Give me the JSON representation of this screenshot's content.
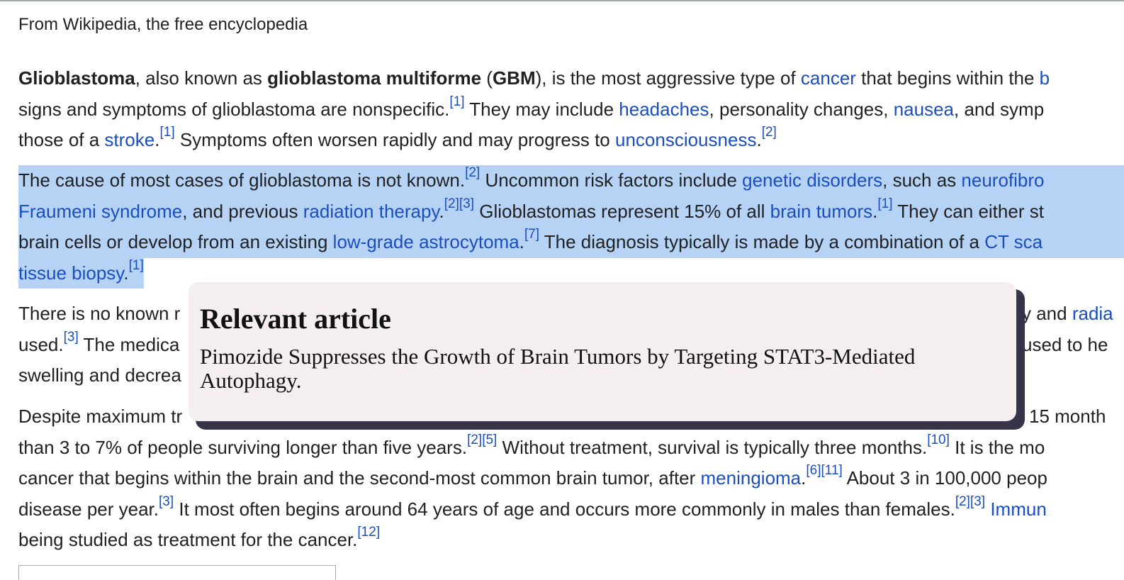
{
  "tagline": "From Wikipedia, the free encyclopedia",
  "p1": {
    "l1": {
      "t1": "Glioblastoma",
      "t2": ", also known as ",
      "t3": "glioblastoma multiforme",
      "t4": " (",
      "t5": "GBM",
      "t6": "), is the most aggressive type of ",
      "link_cancer": "cancer",
      "t7": " that begins within the ",
      "link_b": "b"
    },
    "l2": {
      "t1": "signs and symptoms of glioblastoma are nonspecific.",
      "ref1": "[1]",
      "t2": " They may include ",
      "link_headaches": "headaches",
      "t3": ", personality changes, ",
      "link_nausea": "nausea",
      "t4": ", and symp"
    },
    "l3": {
      "t1": "those of a ",
      "link_stroke": "stroke",
      "t2": ".",
      "ref1": "[1]",
      "t3": " Symptoms often worsen rapidly and may progress to ",
      "link_unconsciousness": "unconsciousness",
      "t4": ".",
      "ref2": "[2]"
    }
  },
  "p2": {
    "l1": {
      "t1": "The cause of most cases of glioblastoma is not known.",
      "ref1": "[2]",
      "t2": " Uncommon risk factors include ",
      "link_genetic": "genetic disorders",
      "t3": ", such as ",
      "link_neuro": "neurofibro"
    },
    "l2": {
      "link_fraumeni": "Fraumeni syndrome",
      "t1": ", and previous ",
      "link_radiation": "radiation therapy",
      "t2": ".",
      "ref1": "[2]",
      "ref2": "[3]",
      "t3": " Glioblastomas represent 15% of all ",
      "link_brain_tumors": "brain tumors",
      "t4": ".",
      "ref3": "[1]",
      "t5": " They can either st"
    },
    "l3": {
      "t1": "brain cells or develop from an existing ",
      "link_lowgrade": "low-grade astrocytoma",
      "t2": ".",
      "ref1": "[7]",
      "t3": " The diagnosis typically is made by a combination of a ",
      "link_ct": "CT sca"
    },
    "l4": {
      "link_biopsy": "tissue biopsy",
      "t1": ".",
      "ref1": "[1]"
    }
  },
  "p3": {
    "l1": {
      "t1": "There is no known r",
      "t2": "y and ",
      "link_radia": "radia"
    },
    "l2": {
      "t1": "used.",
      "ref1": "[3]",
      "t2": " The medica",
      "t3": "used to he"
    },
    "l3": {
      "t1": "swelling and decrea"
    }
  },
  "p4": {
    "l1": {
      "t1": "Despite maximum tr",
      "t2": "15 month"
    },
    "l2": {
      "t1": "than 3 to 7% of people surviving longer than five years.",
      "ref1": "[2]",
      "ref2": "[5]",
      "t2": " Without treatment, survival is typically three months.",
      "ref3": "[10]",
      "t3": " It is the mo"
    },
    "l3": {
      "t1": "cancer that begins within the brain and the second-most common brain tumor, after ",
      "link_meningioma": "meningioma",
      "t2": ".",
      "ref1": "[6]",
      "ref2": "[11]",
      "t3": " About 3 in 100,000 peop"
    },
    "l4": {
      "t1": "disease per year.",
      "ref1": "[3]",
      "t2": " It most often begins around 64 years of age and occurs more commonly in males than females.",
      "ref2": "[2]",
      "ref3": "[3]",
      "t3": " ",
      "link_immun": "Immun"
    },
    "l5": {
      "t1": "being studied as treatment for the cancer.",
      "ref1": "[12]"
    }
  },
  "popup": {
    "title": "Relevant article",
    "body": "Pimozide Suppresses the Growth of Brain Tumors by Targeting STAT3-Mediated Autophagy."
  },
  "colors": {
    "link": "#1a4ec0",
    "selection": "#b6d3f6",
    "popup_bg": "#f5eeee",
    "popup_shadow": "#37344a"
  }
}
